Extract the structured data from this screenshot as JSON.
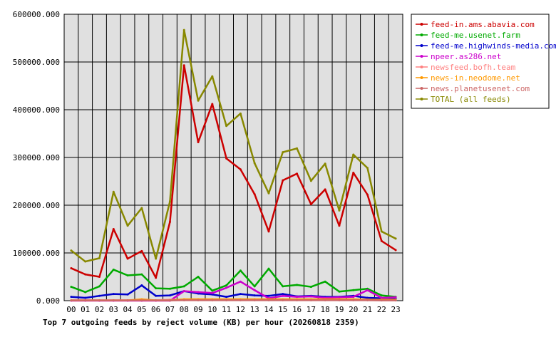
{
  "chart_data": {
    "type": "line",
    "title": "Top 7 outgoing feeds by reject volume (KB) per hour (20260818 2359)",
    "xlabel": "",
    "ylabel": "",
    "x": [
      "00",
      "01",
      "02",
      "03",
      "04",
      "05",
      "06",
      "07",
      "08",
      "09",
      "10",
      "11",
      "12",
      "13",
      "14",
      "15",
      "16",
      "17",
      "18",
      "19",
      "20",
      "21",
      "22",
      "23"
    ],
    "y_ticks": [
      "0.000",
      "100000.000",
      "200000.000",
      "300000.000",
      "400000.000",
      "500000.000",
      "600000.000"
    ],
    "ylim": [
      0,
      600000
    ],
    "grid": true,
    "legend_position": "right",
    "series": [
      {
        "name": "feed-in.ams.abavia.com",
        "color": "#cc0000",
        "values": [
          68000,
          55000,
          50000,
          150000,
          88000,
          104000,
          48000,
          165000,
          493000,
          332000,
          412000,
          298000,
          275000,
          223000,
          145000,
          252000,
          266000,
          202000,
          233000,
          157000,
          268000,
          222000,
          125000,
          106000
        ]
      },
      {
        "name": "feed-me.usenet.farm",
        "color": "#00aa00",
        "values": [
          29000,
          18000,
          30000,
          65000,
          53000,
          55000,
          26000,
          25000,
          30000,
          50000,
          21000,
          32000,
          63000,
          30000,
          67000,
          30000,
          33000,
          29000,
          40000,
          19000,
          22000,
          25000,
          11000,
          8000
        ]
      },
      {
        "name": "feed-me.highwinds-media.com",
        "color": "#0000cc",
        "values": [
          8000,
          6000,
          10000,
          14000,
          13000,
          32000,
          10000,
          11000,
          20000,
          15000,
          13000,
          8000,
          14000,
          11000,
          10000,
          14000,
          9000,
          10000,
          8000,
          8000,
          10000,
          6000,
          5000,
          5000
        ]
      },
      {
        "name": "npeer.as286.net",
        "color": "#cc00cc",
        "values": [
          0,
          0,
          0,
          0,
          0,
          0,
          0,
          0,
          20000,
          18000,
          16000,
          27000,
          40000,
          22000,
          5000,
          10000,
          8000,
          9000,
          6000,
          7000,
          8000,
          22000,
          6000,
          7000
        ]
      },
      {
        "name": "newsfeed.bofh.team",
        "color": "#ff8080",
        "values": [
          1000,
          1000,
          1000,
          1000,
          1000,
          1000,
          1000,
          2000,
          2000,
          2000,
          2000,
          2000,
          2000,
          2000,
          2000,
          2000,
          2000,
          2000,
          2000,
          2000,
          2000,
          2000,
          1000,
          1000
        ]
      },
      {
        "name": "news-in.neodome.net",
        "color": "#ff9900",
        "values": [
          500,
          500,
          500,
          500,
          500,
          3000,
          500,
          500,
          3000,
          3000,
          3000,
          3000,
          3000,
          3000,
          3000,
          3000,
          3000,
          3000,
          3000,
          3000,
          3000,
          2000,
          2000,
          2000
        ]
      },
      {
        "name": "news.planetusenet.com",
        "color": "#cc6666",
        "values": [
          500,
          500,
          500,
          500,
          500,
          500,
          500,
          500,
          1000,
          1000,
          1000,
          1000,
          1000,
          1000,
          1000,
          1000,
          1000,
          1000,
          1000,
          1000,
          1000,
          1000,
          500,
          500
        ]
      },
      {
        "name": "TOTAL (all feeds)",
        "color": "#888800",
        "values": [
          105000,
          82000,
          89000,
          228000,
          157000,
          194000,
          88000,
          208000,
          567000,
          419000,
          470000,
          366000,
          392000,
          288000,
          225000,
          311000,
          319000,
          251000,
          287000,
          189000,
          306000,
          278000,
          145000,
          130000
        ]
      }
    ]
  }
}
